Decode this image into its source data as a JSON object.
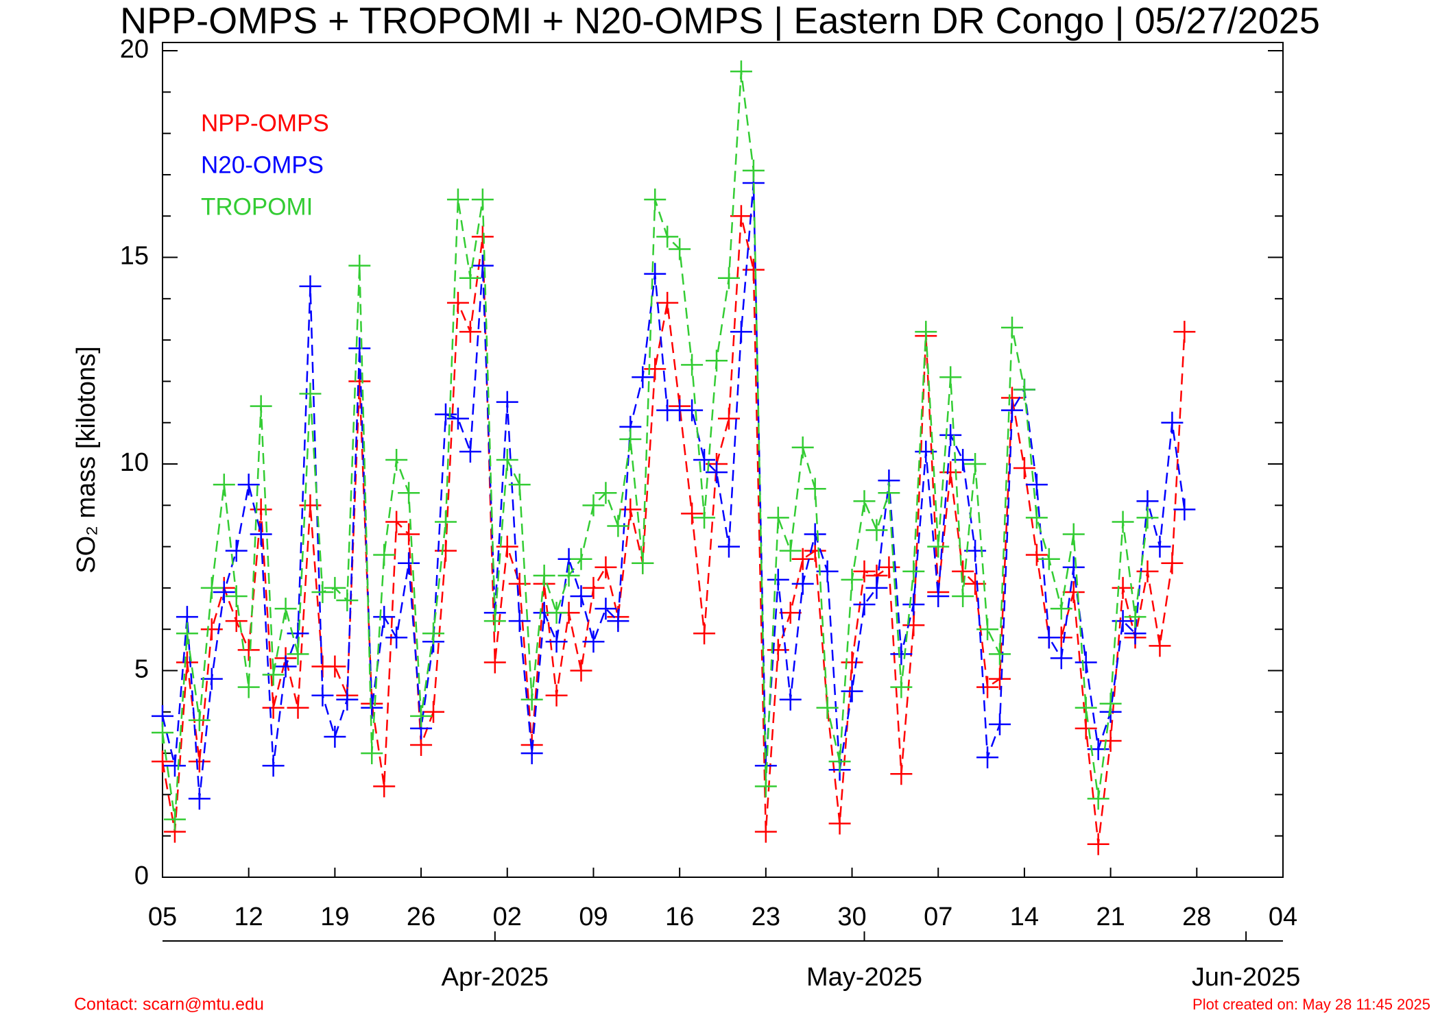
{
  "chart_data": {
    "type": "line",
    "title": "NPP-OMPS + TROPOMI + N20-OMPS | Eastern DR Congo | 05/27/2025",
    "ylabel": "SO₂ mass [kilotons]",
    "footer_left": "Contact: scarn@mtu.edu",
    "footer_right": "Plot created on: May 28 11:45 2025",
    "legend": "upper left",
    "x": [
      "2025-03-05",
      "2025-03-06",
      "2025-03-07",
      "2025-03-08",
      "2025-03-09",
      "2025-03-10",
      "2025-03-11",
      "2025-03-12",
      "2025-03-13",
      "2025-03-14",
      "2025-03-15",
      "2025-03-16",
      "2025-03-17",
      "2025-03-18",
      "2025-03-19",
      "2025-03-20",
      "2025-03-21",
      "2025-03-22",
      "2025-03-23",
      "2025-03-24",
      "2025-03-25",
      "2025-03-26",
      "2025-03-27",
      "2025-03-28",
      "2025-03-29",
      "2025-03-30",
      "2025-03-31",
      "2025-04-01",
      "2025-04-02",
      "2025-04-03",
      "2025-04-04",
      "2025-04-05",
      "2025-04-06",
      "2025-04-07",
      "2025-04-08",
      "2025-04-09",
      "2025-04-10",
      "2025-04-11",
      "2025-04-12",
      "2025-04-13",
      "2025-04-14",
      "2025-04-15",
      "2025-04-16",
      "2025-04-17",
      "2025-04-18",
      "2025-04-19",
      "2025-04-20",
      "2025-04-21",
      "2025-04-22",
      "2025-04-23",
      "2025-04-24",
      "2025-04-25",
      "2025-04-26",
      "2025-04-27",
      "2025-04-28",
      "2025-04-29",
      "2025-04-30",
      "2025-05-01",
      "2025-05-02",
      "2025-05-03",
      "2025-05-04",
      "2025-05-05",
      "2025-05-06",
      "2025-05-07",
      "2025-05-08",
      "2025-05-09",
      "2025-05-10",
      "2025-05-11",
      "2025-05-12",
      "2025-05-13",
      "2025-05-14",
      "2025-05-15",
      "2025-05-16",
      "2025-05-17",
      "2025-05-18",
      "2025-05-19",
      "2025-05-20",
      "2025-05-21",
      "2025-05-22",
      "2025-05-23",
      "2025-05-24",
      "2025-05-25",
      "2025-05-26",
      "2025-05-27"
    ],
    "series": [
      {
        "name": "NPP-OMPS",
        "color": "#ff0000",
        "values": [
          2.8,
          1.1,
          5.2,
          2.8,
          6.0,
          7.0,
          6.2,
          5.5,
          8.9,
          4.1,
          5.3,
          4.1,
          9.0,
          5.1,
          5.1,
          4.4,
          12.0,
          4.2,
          2.2,
          8.6,
          8.3,
          3.2,
          4.0,
          7.9,
          13.9,
          13.2,
          15.5,
          5.2,
          8.0,
          7.1,
          3.2,
          7.1,
          4.4,
          6.4,
          5.0,
          7.0,
          7.5,
          6.3,
          8.9,
          7.6,
          12.3,
          13.9,
          11.4,
          8.8,
          5.9,
          10.0,
          11.1,
          16.0,
          14.7,
          1.1,
          5.5,
          6.4,
          7.7,
          7.9,
          4.1,
          1.3,
          5.2,
          7.4,
          7.3,
          7.5,
          2.5,
          6.1,
          13.1,
          6.9,
          9.8,
          7.4,
          7.1,
          4.6,
          4.8,
          11.6,
          9.9,
          7.8,
          5.8,
          5.8,
          6.9,
          3.6,
          0.8,
          3.3,
          7.0,
          5.8,
          7.4,
          5.6,
          7.6,
          13.2
        ]
      },
      {
        "name": "N20-OMPS",
        "color": "#0000ff",
        "values": [
          3.9,
          2.7,
          6.3,
          1.9,
          4.8,
          6.9,
          7.9,
          9.5,
          8.3,
          2.7,
          5.1,
          5.9,
          14.3,
          4.4,
          3.4,
          4.3,
          12.8,
          4.1,
          6.3,
          5.8,
          7.6,
          3.6,
          5.7,
          11.2,
          11.1,
          10.3,
          14.8,
          6.4,
          11.5,
          6.2,
          3.0,
          6.4,
          5.7,
          7.7,
          6.8,
          5.7,
          6.5,
          6.2,
          10.9,
          12.1,
          14.6,
          11.3,
          11.3,
          11.3,
          10.1,
          9.8,
          8.0,
          13.2,
          16.8,
          2.7,
          7.2,
          4.3,
          7.1,
          8.3,
          7.4,
          2.6,
          4.5,
          6.6,
          7.0,
          9.6,
          5.4,
          6.6,
          10.3,
          6.8,
          10.7,
          10.1,
          7.9,
          2.9,
          3.7,
          11.3,
          11.8,
          9.5,
          5.8,
          5.3,
          7.5,
          5.2,
          3.1,
          4.0,
          6.2,
          5.9,
          9.1,
          8.0,
          11.0,
          8.9
        ]
      },
      {
        "name": "TROPOMI",
        "color": "#33cc33",
        "values": [
          3.5,
          1.4,
          5.9,
          3.8,
          7.0,
          9.5,
          6.8,
          4.6,
          11.4,
          4.9,
          6.5,
          5.4,
          11.7,
          6.9,
          7.0,
          6.7,
          14.8,
          3.0,
          7.8,
          10.1,
          9.3,
          3.9,
          5.9,
          8.6,
          16.4,
          14.5,
          16.4,
          6.2,
          10.1,
          9.5,
          4.3,
          7.3,
          6.4,
          7.3,
          7.7,
          9.0,
          9.3,
          8.5,
          10.6,
          7.6,
          16.4,
          15.5,
          15.2,
          12.4,
          8.7,
          12.5,
          14.5,
          19.5,
          17.1,
          2.2,
          8.7,
          7.9,
          10.4,
          9.4,
          4.1,
          2.8,
          7.2,
          9.1,
          8.4,
          9.3,
          4.6,
          7.4,
          13.2,
          8.0,
          12.1,
          6.8,
          10.0,
          6.0,
          5.4,
          13.3,
          11.8,
          8.7,
          7.7,
          6.5,
          8.3,
          4.1,
          1.9,
          4.2,
          8.6,
          6.3,
          8.7,
          null,
          null,
          null
        ]
      }
    ],
    "xlim": [
      "2025-03-05",
      "2025-06-04"
    ],
    "xticks": [
      {
        "value": "2025-03-05",
        "label": "05"
      },
      {
        "value": "2025-03-12",
        "label": "12"
      },
      {
        "value": "2025-03-19",
        "label": "19"
      },
      {
        "value": "2025-03-26",
        "label": "26"
      },
      {
        "value": "2025-04-02",
        "label": "02"
      },
      {
        "value": "2025-04-09",
        "label": "09"
      },
      {
        "value": "2025-04-16",
        "label": "16"
      },
      {
        "value": "2025-04-23",
        "label": "23"
      },
      {
        "value": "2025-04-30",
        "label": "30"
      },
      {
        "value": "2025-05-07",
        "label": "07"
      },
      {
        "value": "2025-05-14",
        "label": "14"
      },
      {
        "value": "2025-05-21",
        "label": "21"
      },
      {
        "value": "2025-05-28",
        "label": "28"
      },
      {
        "value": "2025-06-04",
        "label": "04"
      }
    ],
    "month_ticks": [
      {
        "value": "2025-04-01",
        "label": "Apr-2025"
      },
      {
        "value": "2025-05-01",
        "label": "May-2025"
      },
      {
        "value": "2025-06-01",
        "label": "Jun-2025"
      }
    ],
    "ylim": [
      0,
      20.2
    ],
    "yticks": [
      0,
      5,
      10,
      15,
      20
    ],
    "y_minor_ticks": [
      1,
      2,
      3,
      4,
      6,
      7,
      8,
      9,
      11,
      12,
      13,
      14,
      16,
      17,
      18,
      19
    ]
  }
}
